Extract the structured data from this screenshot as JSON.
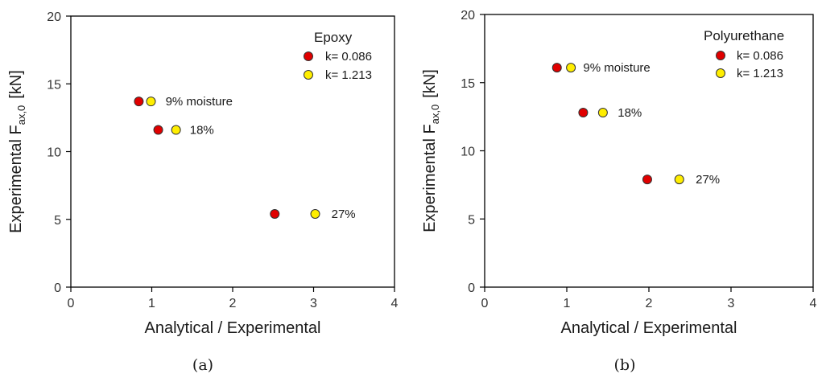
{
  "colors": {
    "series1": "#e00000",
    "series2": "#ffee00",
    "marker_edge": "#333333",
    "axis": "#000000"
  },
  "chart_data": [
    {
      "type": "scatter",
      "caption": "(a)",
      "xlabel": "Analytical / Experimental",
      "ylabel_main": "Experimental F",
      "ylabel_sub": "ax,0",
      "ylabel_unit": "[kN]",
      "xlim": [
        0,
        4
      ],
      "ylim": [
        0,
        20
      ],
      "xticks": [
        0,
        1,
        2,
        3,
        4
      ],
      "yticks": [
        0,
        5,
        10,
        15,
        20
      ],
      "grid": false,
      "legend_title": "Epoxy",
      "legend_placement": "top-right",
      "series": [
        {
          "name": "k= 0.086",
          "color": "#e00000",
          "points": [
            {
              "x": 0.84,
              "y": 13.7
            },
            {
              "x": 1.08,
              "y": 11.6
            },
            {
              "x": 2.52,
              "y": 5.4
            }
          ]
        },
        {
          "name": "k= 1.213",
          "color": "#ffee00",
          "points": [
            {
              "x": 0.99,
              "y": 13.7
            },
            {
              "x": 1.3,
              "y": 11.6
            },
            {
              "x": 3.02,
              "y": 5.4
            }
          ]
        }
      ],
      "annotations": [
        {
          "text": "9% moisture",
          "x": 1.17,
          "y": 13.7
        },
        {
          "text": "18%",
          "x": 1.47,
          "y": 11.6
        },
        {
          "text": "27%",
          "x": 3.22,
          "y": 5.4
        }
      ]
    },
    {
      "type": "scatter",
      "caption": "(b)",
      "xlabel": "Analytical / Experimental",
      "ylabel_main": "Experimental F",
      "ylabel_sub": "ax,0",
      "ylabel_unit": "[kN]",
      "xlim": [
        0,
        4
      ],
      "ylim": [
        0,
        20
      ],
      "xticks": [
        0,
        1,
        2,
        3,
        4
      ],
      "yticks": [
        0,
        5,
        10,
        15,
        20
      ],
      "grid": false,
      "legend_title": "Polyurethane",
      "legend_placement": "top-right",
      "series": [
        {
          "name": "k= 0.086",
          "color": "#e00000",
          "points": [
            {
              "x": 0.88,
              "y": 16.1
            },
            {
              "x": 1.2,
              "y": 12.8
            },
            {
              "x": 1.98,
              "y": 7.9
            }
          ]
        },
        {
          "name": "k= 1.213",
          "color": "#ffee00",
          "points": [
            {
              "x": 1.05,
              "y": 16.1
            },
            {
              "x": 1.44,
              "y": 12.8
            },
            {
              "x": 2.37,
              "y": 7.9
            }
          ]
        }
      ],
      "annotations": [
        {
          "text": "9% moisture",
          "x": 1.2,
          "y": 16.1
        },
        {
          "text": "18%",
          "x": 1.62,
          "y": 12.8
        },
        {
          "text": "27%",
          "x": 2.57,
          "y": 7.9
        }
      ]
    }
  ]
}
